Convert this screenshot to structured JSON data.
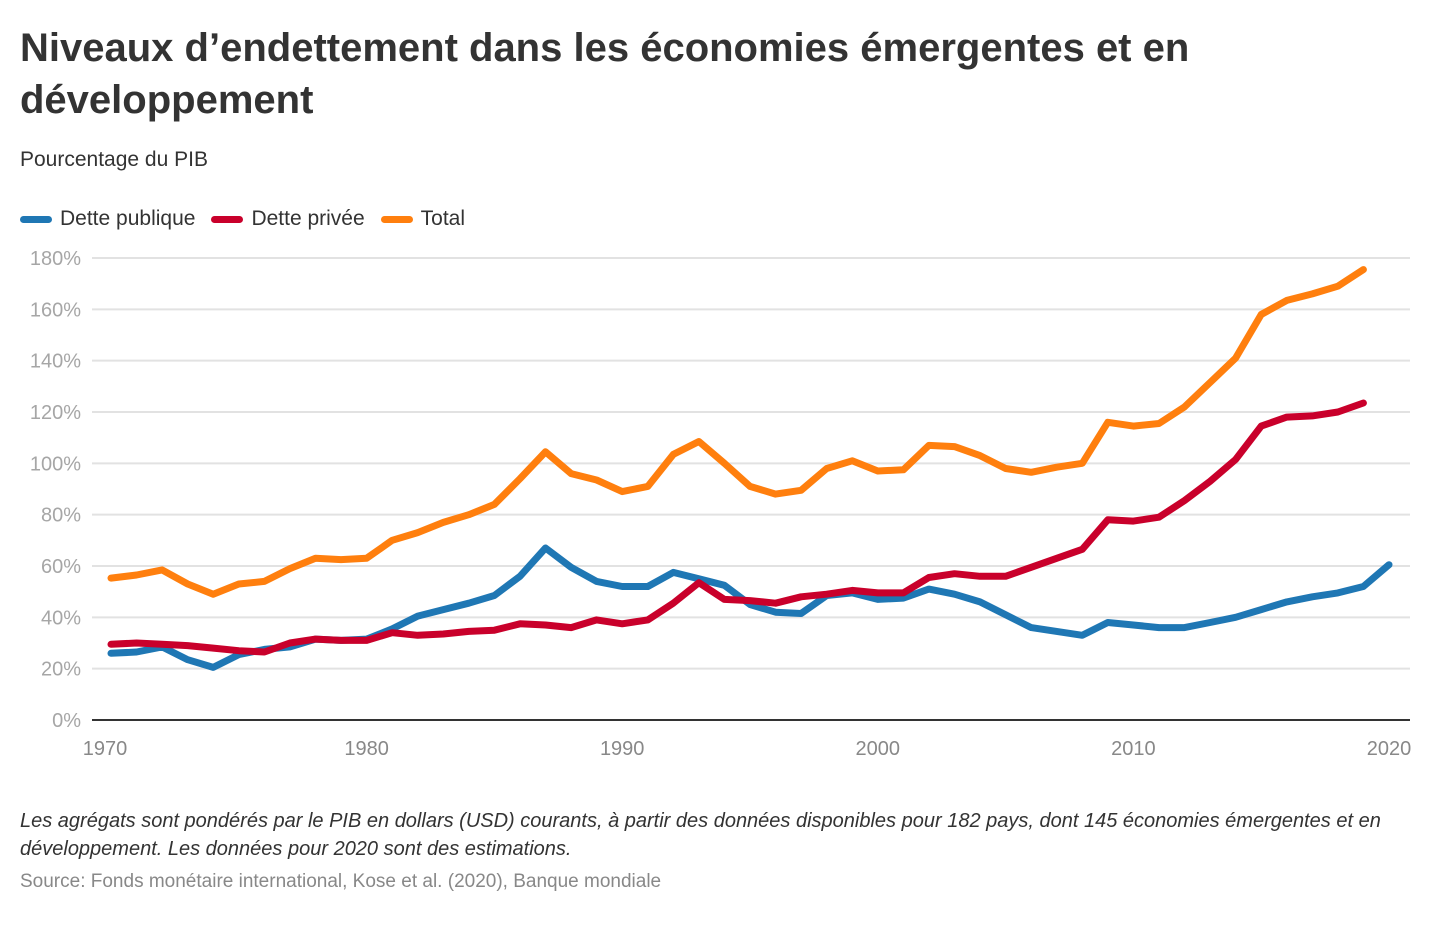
{
  "title": "Niveaux d’endettement dans les économies émergentes et en développement",
  "subtitle": "Pourcentage du PIB",
  "note": "Les agrégats sont pondérés par le PIB en dollars (USD) courants, à partir des données disponibles pour 182 pays, dont 145 économies émergentes et en développement. Les données pour 2020 sont des estimations.",
  "source": "Source: Fonds monétaire international, Kose et al. (2020), Banque mondiale",
  "legend": [
    {
      "label": "Dette publique",
      "color": "#1f77b4"
    },
    {
      "label": "Dette privée",
      "color": "#c9002b"
    },
    {
      "label": "Total",
      "color": "#ff7f0e"
    }
  ],
  "chart_data": {
    "type": "line",
    "title": "Niveaux d’endettement dans les économies émergentes et en développement",
    "subtitle": "Pourcentage du PIB",
    "xlabel": "",
    "ylabel": "",
    "xlim": [
      1970,
      2020
    ],
    "ylim": [
      0,
      180
    ],
    "x_ticks": [
      1970,
      1980,
      1990,
      2000,
      2010,
      2020
    ],
    "x_tick_labels": [
      "1970",
      "1980",
      "1990",
      "2000",
      "2010",
      "2020"
    ],
    "y_ticks": [
      0,
      20,
      40,
      60,
      80,
      100,
      120,
      140,
      160,
      180
    ],
    "y_tick_labels": [
      "0%",
      "20%",
      "40%",
      "60%",
      "80%",
      "100%",
      "120%",
      "140%",
      "160%",
      "180%"
    ],
    "grid": true,
    "legend_position": "top-left",
    "series": [
      {
        "name": "Dette publique",
        "color": "#1f77b4",
        "x": [
          1970,
          1971,
          1972,
          1973,
          1974,
          1975,
          1976,
          1977,
          1978,
          1979,
          1980,
          1981,
          1982,
          1983,
          1984,
          1985,
          1986,
          1987,
          1988,
          1989,
          1990,
          1991,
          1992,
          1993,
          1994,
          1995,
          1996,
          1997,
          1998,
          1999,
          2000,
          2001,
          2002,
          2003,
          2004,
          2005,
          2006,
          2007,
          2008,
          2009,
          2010,
          2011,
          2012,
          2013,
          2014,
          2015,
          2016,
          2017,
          2018,
          2019,
          2020
        ],
        "values": [
          26,
          26.5,
          28.5,
          23.5,
          20.5,
          25.5,
          27.5,
          28.5,
          31.5,
          31,
          31.5,
          35.5,
          40.5,
          43,
          45.5,
          48.5,
          56,
          67,
          59.5,
          54,
          52,
          52,
          57.5,
          55,
          52.5,
          45,
          42,
          41.5,
          48.5,
          49.5,
          47,
          47.5,
          51,
          49,
          46,
          41,
          36,
          34.5,
          33,
          38,
          37,
          36,
          36,
          38,
          40,
          43,
          46,
          48,
          49.5,
          52,
          60.5
        ]
      },
      {
        "name": "Dette privée",
        "color": "#c9002b",
        "x": [
          1970,
          1971,
          1972,
          1973,
          1974,
          1975,
          1976,
          1977,
          1978,
          1979,
          1980,
          1981,
          1982,
          1983,
          1984,
          1985,
          1986,
          1987,
          1988,
          1989,
          1990,
          1991,
          1992,
          1993,
          1994,
          1995,
          1996,
          1997,
          1998,
          1999,
          2000,
          2001,
          2002,
          2003,
          2004,
          2005,
          2006,
          2007,
          2008,
          2009,
          2010,
          2011,
          2012,
          2013,
          2014,
          2015,
          2016,
          2017,
          2018,
          2019
        ],
        "values": [
          29.5,
          30,
          29.5,
          29,
          28,
          27,
          26.5,
          30,
          31.5,
          31,
          31,
          34,
          33,
          33.5,
          34.5,
          35,
          37.5,
          37,
          36,
          39,
          37.5,
          39,
          45.5,
          53.5,
          47,
          46.5,
          45.5,
          48,
          49,
          50.5,
          49.5,
          49.5,
          55.5,
          57,
          56,
          56,
          59.5,
          63,
          66.5,
          78,
          77.5,
          79,
          85.5,
          93,
          101.5,
          114.5,
          118,
          118.5,
          120,
          123.5
        ]
      },
      {
        "name": "Total",
        "color": "#ff7f0e",
        "x": [
          1970,
          1971,
          1972,
          1973,
          1974,
          1975,
          1976,
          1977,
          1978,
          1979,
          1980,
          1981,
          1982,
          1983,
          1984,
          1985,
          1986,
          1987,
          1988,
          1989,
          1990,
          1991,
          1992,
          1993,
          1994,
          1995,
          1996,
          1997,
          1998,
          1999,
          2000,
          2001,
          2002,
          2003,
          2004,
          2005,
          2006,
          2007,
          2008,
          2009,
          2010,
          2011,
          2012,
          2013,
          2014,
          2015,
          2016,
          2017,
          2018,
          2019
        ],
        "values": [
          55.3,
          56.5,
          58.5,
          53,
          49,
          53,
          54,
          59,
          63,
          62.5,
          63,
          70,
          73,
          77,
          80,
          84,
          94,
          104.5,
          96,
          93.5,
          89,
          91,
          103.5,
          108.5,
          100,
          91,
          88,
          89.5,
          98,
          101,
          97,
          97.5,
          107,
          106.5,
          103,
          98,
          96.5,
          98.5,
          100,
          116,
          114.5,
          115.5,
          122,
          131.5,
          141,
          158,
          163.5,
          166,
          169,
          175.5
        ]
      }
    ]
  }
}
